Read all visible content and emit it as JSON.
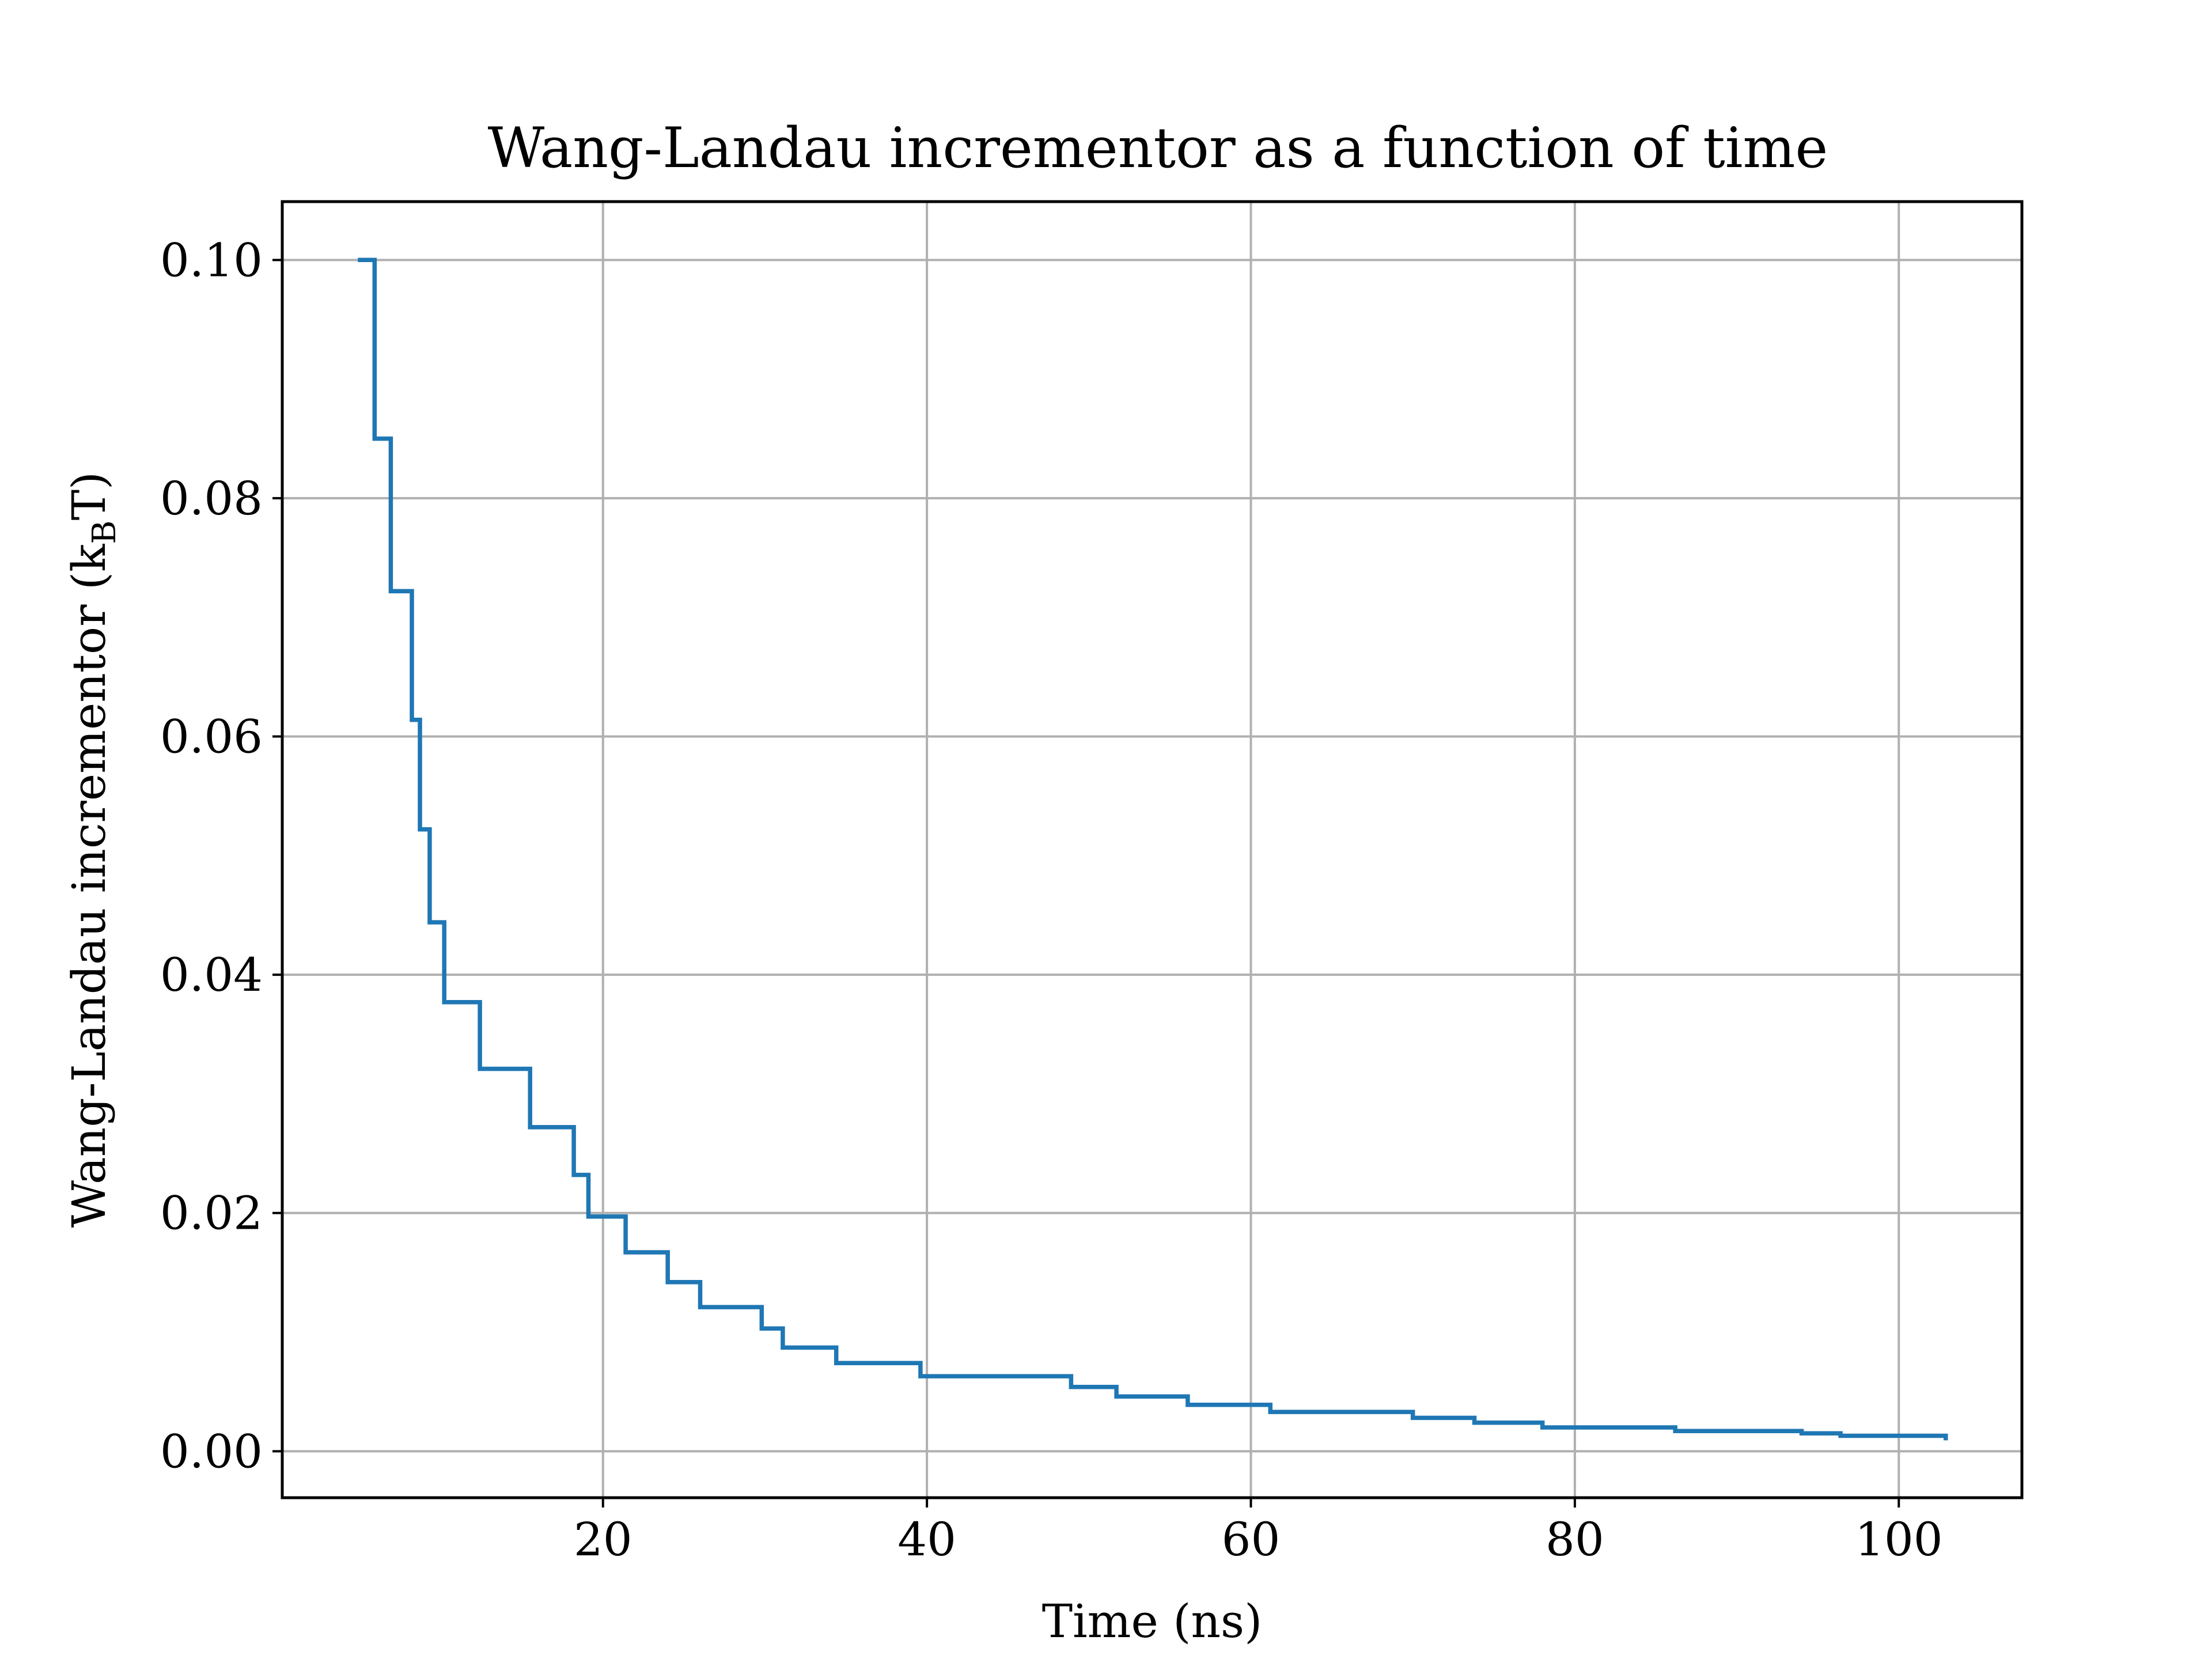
{
  "chart_data": {
    "type": "line",
    "drawstyle": "steps-post",
    "title": "Wang-Landau incrementor as a function of time",
    "xlabel": "Time (ns)",
    "ylabel": {
      "prefix": "Wang-Landau incrementor (k",
      "subscript": "B",
      "suffix": "T)"
    },
    "xlim": [
      0.2,
      107.6
    ],
    "ylim": [
      -0.0039,
      0.1049
    ],
    "xticks": [
      {
        "value": 20,
        "label": "20"
      },
      {
        "value": 40,
        "label": "40"
      },
      {
        "value": 60,
        "label": "60"
      },
      {
        "value": 80,
        "label": "80"
      },
      {
        "value": 100,
        "label": "100"
      }
    ],
    "yticks": [
      {
        "value": 0.0,
        "label": "0.00"
      },
      {
        "value": 0.02,
        "label": "0.02"
      },
      {
        "value": 0.04,
        "label": "0.04"
      },
      {
        "value": 0.06,
        "label": "0.06"
      },
      {
        "value": 0.08,
        "label": "0.08"
      },
      {
        "value": 0.1,
        "label": "0.10"
      }
    ],
    "grid": true,
    "legend": null,
    "colors": {
      "line": "#1f77b4",
      "grid": "#b0b0b0",
      "axes": "#000000",
      "background": "#ffffff"
    },
    "series": [
      {
        "x": [
          5.0,
          5.9,
          6.9,
          8.2,
          8.7,
          9.3,
          10.2,
          12.4,
          15.5,
          18.2,
          19.1,
          21.4,
          24.0,
          26.0,
          29.8,
          31.1,
          34.4,
          39.6,
          48.9,
          51.7,
          56.1,
          61.2,
          70.0,
          73.8,
          78.0,
          86.2,
          94.0,
          96.4,
          102.9
        ],
        "y": [
          0.1,
          0.085,
          0.0722,
          0.0614,
          0.0522,
          0.0444,
          0.0377,
          0.0321,
          0.0272,
          0.0232,
          0.0197,
          0.0167,
          0.0142,
          0.0121,
          0.0103,
          0.0087,
          0.0074,
          0.0063,
          0.0054,
          0.0046,
          0.0039,
          0.0033,
          0.0028,
          0.0024,
          0.002,
          0.0017,
          0.0015,
          0.0013,
          0.0011
        ]
      }
    ]
  }
}
